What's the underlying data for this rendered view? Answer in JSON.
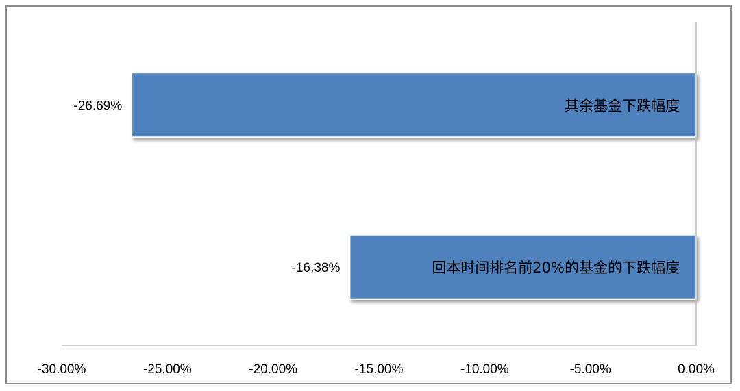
{
  "chart_data": {
    "type": "bar",
    "orientation": "horizontal",
    "categories": [
      "其余基金下跌幅度",
      "回本时间排名前20%的基金的下跌幅度"
    ],
    "values": [
      -26.69,
      -16.38
    ],
    "value_labels": [
      "-26.69%",
      "-16.38%"
    ],
    "xlim": [
      -30,
      0
    ],
    "x_ticks": [
      -30,
      -25,
      -20,
      -15,
      -10,
      -5,
      0
    ],
    "x_tick_labels": [
      "-30.00%",
      "-25.00%",
      "-20.00%",
      "-15.00%",
      "-10.00%",
      "-5.00%",
      "0.00%"
    ],
    "grid": false,
    "legend": "none",
    "title": "",
    "xlabel": "",
    "ylabel": "",
    "bar_color": "#4f81bd",
    "axis_color": "#bfbfbf"
  }
}
